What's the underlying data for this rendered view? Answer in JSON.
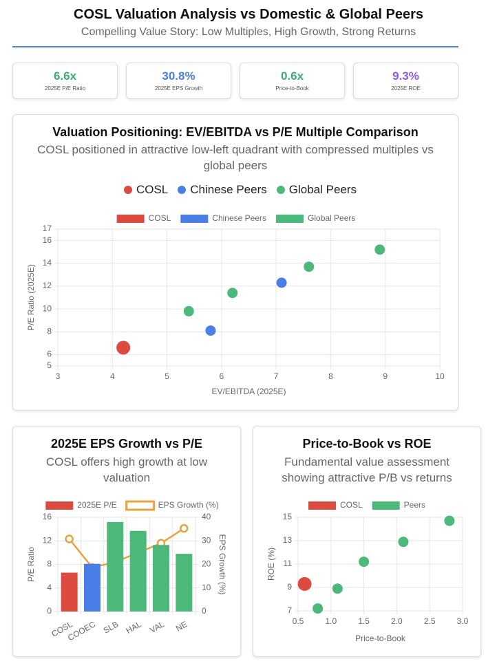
{
  "header": {
    "title": "COSL Valuation Analysis vs Domestic & Global Peers",
    "subtitle": "Compelling Value Story: Low Multiples, High Growth, Strong Returns"
  },
  "kpis": [
    {
      "value": "6.6x",
      "label": "2025E P/E Ratio",
      "color": "#3dab73"
    },
    {
      "value": "30.8%",
      "label": "2025E EPS Growth",
      "color": "#4a7fe0"
    },
    {
      "value": "0.6x",
      "label": "Price-to-Book",
      "color": "#3dab73"
    },
    {
      "value": "9.3%",
      "label": "2025E ROE",
      "color": "#8a5ae0"
    }
  ],
  "chart_data": [
    {
      "type": "scatter",
      "title": "Valuation Positioning: EV/EBITDA vs P/E Multiple Comparison",
      "subtitle": "COSL positioned in attractive low-left quadrant with compressed multiples vs global peers",
      "x_label": "EV/EBITDA (2025E)",
      "y_label": "P/E Ratio (2025E)",
      "xlim": [
        3,
        10
      ],
      "xticks": [
        3,
        4,
        5,
        6,
        7,
        8,
        9,
        10
      ],
      "ylim": [
        5,
        17
      ],
      "yticks": [
        5,
        6,
        8,
        10,
        12,
        14,
        16,
        17
      ],
      "grid": true,
      "series": [
        {
          "name": "COSL",
          "color": "#dd4b40",
          "x": [
            4.2
          ],
          "values": [
            6.6
          ]
        },
        {
          "name": "Chinese Peers",
          "color": "#4a7fe8",
          "x": [
            5.8,
            7.1
          ],
          "values": [
            8.1,
            12.3
          ]
        },
        {
          "name": "Global Peers",
          "color": "#4cb87a",
          "x": [
            5.4,
            6.2,
            7.6,
            8.9
          ],
          "values": [
            9.8,
            11.4,
            13.7,
            15.2
          ]
        }
      ]
    },
    {
      "type": "bar",
      "title": "2025E EPS Growth vs P/E",
      "subtitle": "COSL offers high growth at low valuation",
      "categories": [
        "COSL",
        "COOEC",
        "SLB",
        "HAL",
        "VAL",
        "NE"
      ],
      "y_label": "P/E Ratio",
      "y2_label": "EPS Growth (%)",
      "ylim": [
        0,
        16
      ],
      "yticks": [
        0,
        4,
        8,
        12,
        16
      ],
      "y2lim": [
        0,
        40
      ],
      "y2ticks": [
        0,
        10,
        20,
        30,
        40
      ],
      "grid": true,
      "series": [
        {
          "name": "2025E P/E",
          "type": "bar",
          "colors": [
            "#dd4b40",
            "#4a7fe8",
            "#4cb87a",
            "#4cb87a",
            "#4cb87a",
            "#4cb87a"
          ],
          "values": [
            6.6,
            8.1,
            15.2,
            13.7,
            11.3,
            9.8
          ]
        },
        {
          "name": "EPS Growth (%)",
          "type": "line",
          "axis": "y2",
          "color": "#e9a23b",
          "values": [
            30.8,
            18.7,
            21,
            25,
            29,
            35.3
          ]
        }
      ]
    },
    {
      "type": "scatter",
      "title": "Price-to-Book vs ROE",
      "subtitle": "Fundamental value assessment showing attractive P/B vs returns",
      "x_label": "Price-to-Book",
      "y_label": "ROE (%)",
      "xlim": [
        0.5,
        3.0
      ],
      "xticks": [
        0.5,
        {
          "value": 1.0,
          "label": "1.0"
        },
        1.5,
        {
          "value": 2.0,
          "label": "2.0"
        },
        2.5,
        {
          "value": 3.0,
          "label": "3.0"
        }
      ],
      "ylim": [
        7,
        15
      ],
      "yticks": [
        7,
        9,
        11,
        13,
        15
      ],
      "grid": true,
      "series": [
        {
          "name": "COSL",
          "color": "#dd4b40",
          "x": [
            0.6
          ],
          "values": [
            9.3
          ]
        },
        {
          "name": "Peers",
          "color": "#4cb87a",
          "x": [
            0.8,
            1.1,
            1.5,
            2.1,
            2.8
          ],
          "values": [
            7.2,
            8.9,
            11.2,
            12.9,
            14.7
          ]
        }
      ]
    }
  ]
}
